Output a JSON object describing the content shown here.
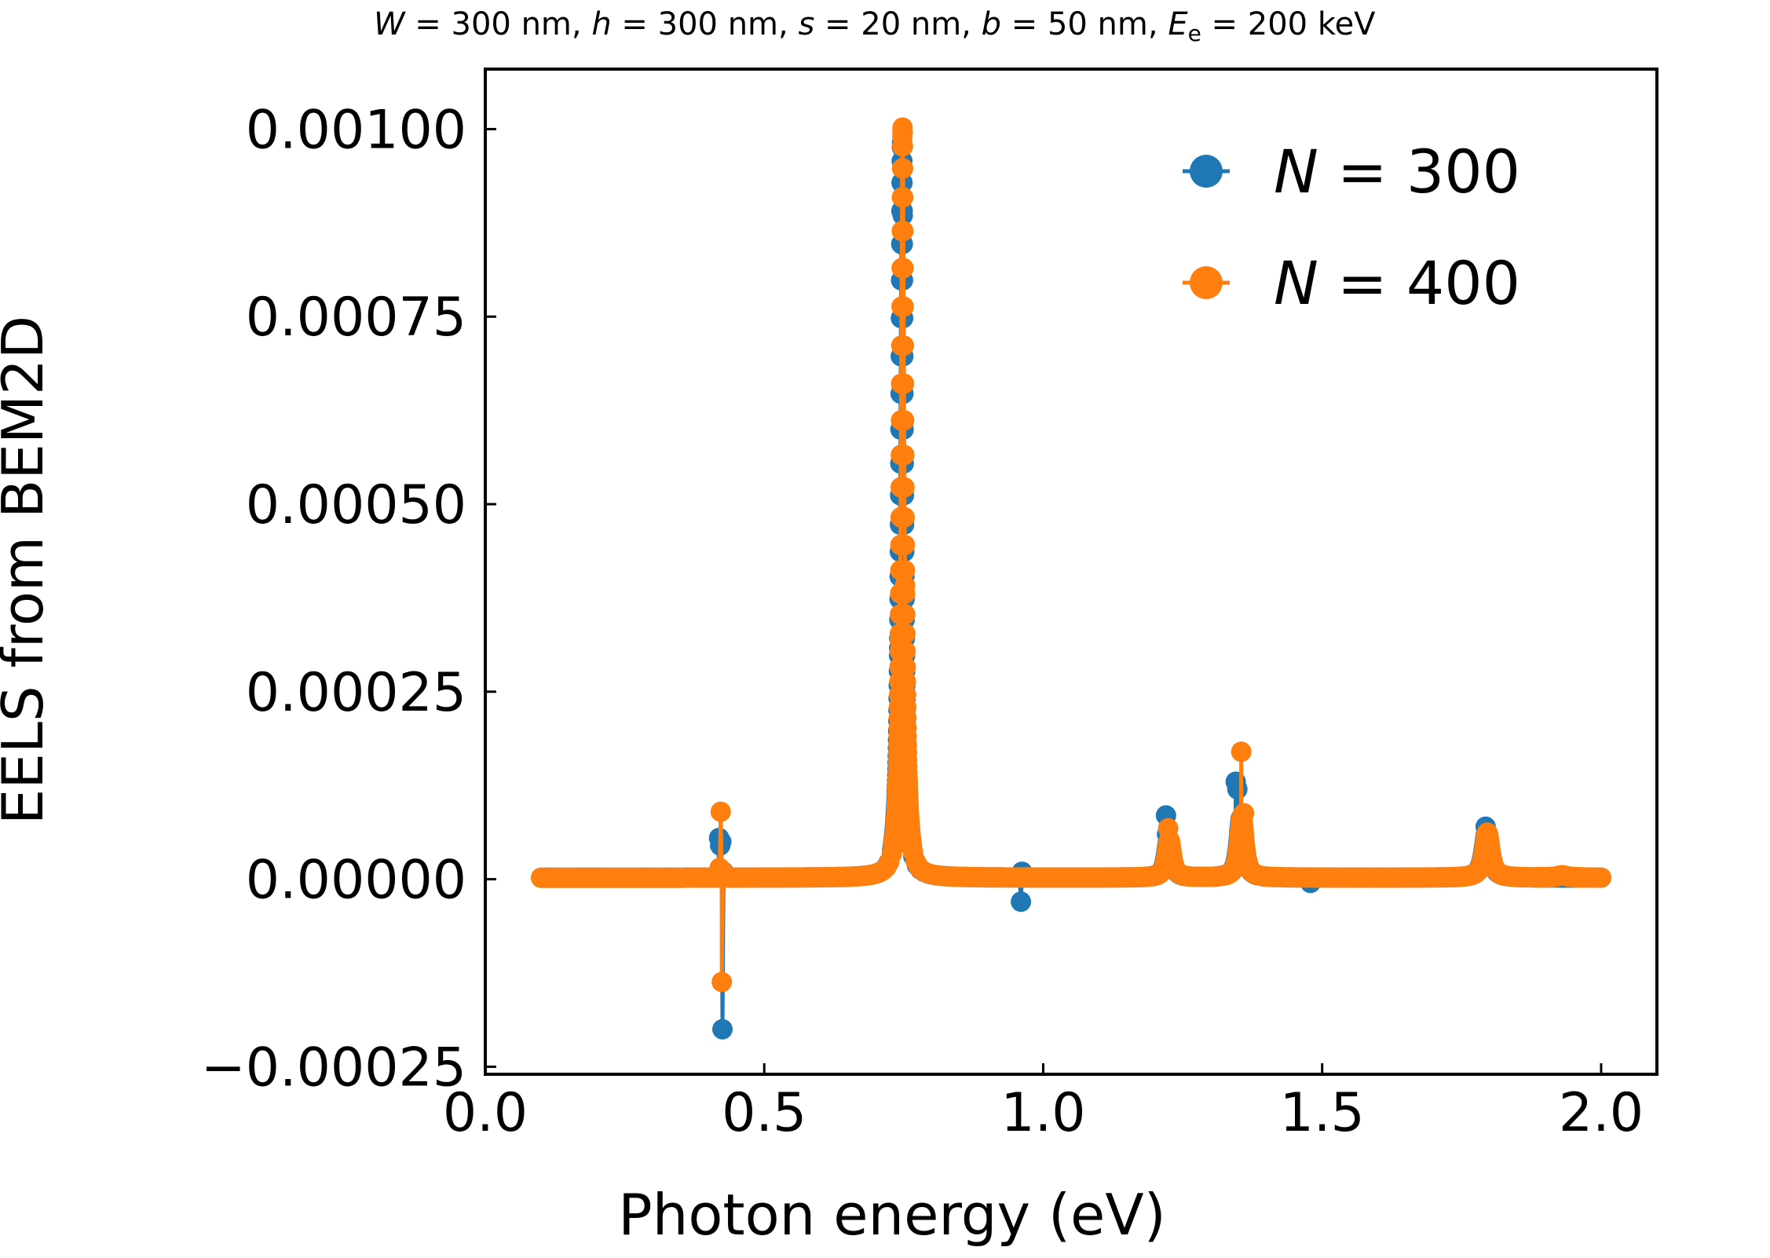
{
  "chart_data": {
    "type": "line",
    "title": {
      "parts": [
        {
          "text": "W",
          "italic": true
        },
        {
          "text": " = 300 nm, ",
          "italic": false
        },
        {
          "text": "h",
          "italic": true
        },
        {
          "text": " = 300 nm, ",
          "italic": false
        },
        {
          "text": "s",
          "italic": true
        },
        {
          "text": " = 20 nm, ",
          "italic": false
        },
        {
          "text": "b",
          "italic": true
        },
        {
          "text": " = 50 nm, ",
          "italic": false
        },
        {
          "text": "E",
          "italic": true
        },
        {
          "text": "e",
          "italic": false,
          "sub": true
        },
        {
          "text": " = 200 keV",
          "italic": false
        }
      ]
    },
    "xlabel": "Photon energy (eV)",
    "ylabel": "EELS from BEM2D",
    "xlim": [
      0.0,
      2.1
    ],
    "ylim": [
      -0.00026,
      0.00108
    ],
    "xticks": [
      {
        "value": 0.0,
        "label": "0.0"
      },
      {
        "value": 0.5,
        "label": "0.5"
      },
      {
        "value": 1.0,
        "label": "1.0"
      },
      {
        "value": 1.5,
        "label": "1.5"
      },
      {
        "value": 2.0,
        "label": "2.0"
      }
    ],
    "yticks": [
      {
        "value": -0.00025,
        "label": "−0.00025"
      },
      {
        "value": 0.0,
        "label": "0.00000"
      },
      {
        "value": 0.00025,
        "label": "0.00025"
      },
      {
        "value": 0.0005,
        "label": "0.00050"
      },
      {
        "value": 0.00075,
        "label": "0.00075"
      },
      {
        "value": 0.001,
        "label": "0.00100"
      }
    ],
    "grid": false,
    "legend_position": "top-right",
    "baseline": 2e-06,
    "x_range": [
      0.1,
      2.0
    ],
    "series": [
      {
        "legend_symbol": "N",
        "legend_value": "= 300",
        "color": "#1f77b4",
        "features": [
          {
            "x": 0.747,
            "y": 0.00098,
            "w": 0.0035
          },
          {
            "x": 1.225,
            "y": 5e-05,
            "w": 0.006
          },
          {
            "x": 1.355,
            "y": 8e-05,
            "w": 0.006
          },
          {
            "x": 1.795,
            "y": 6e-05,
            "w": 0.007
          }
        ],
        "spikes": [
          {
            "x": 0.419,
            "y": 5.5e-05
          },
          {
            "x": 0.421,
            "y": 4.5e-05
          },
          {
            "x": 0.423,
            "y": 5e-05
          },
          {
            "x": 0.425,
            "y": -0.0002
          },
          {
            "x": 0.427,
            "y": 1e-05
          },
          {
            "x": 0.96,
            "y": -3e-05
          },
          {
            "x": 0.962,
            "y": 1e-05
          },
          {
            "x": 1.22,
            "y": 8.5e-05
          },
          {
            "x": 1.222,
            "y": 6e-05
          },
          {
            "x": 1.345,
            "y": 0.00013
          },
          {
            "x": 1.348,
            "y": 0.00012
          },
          {
            "x": 1.352,
            "y": 6.5e-05
          },
          {
            "x": 1.355,
            "y": 4e-05
          },
          {
            "x": 1.479,
            "y": -5e-06
          },
          {
            "x": 1.793,
            "y": 7e-05
          },
          {
            "x": 1.797,
            "y": 6e-05
          }
        ]
      },
      {
        "legend_symbol": "N",
        "legend_value": "= 400",
        "color": "#ff7f0e",
        "features": [
          {
            "x": 0.748,
            "y": 0.001,
            "w": 0.0035
          },
          {
            "x": 1.226,
            "y": 5e-05,
            "w": 0.006
          },
          {
            "x": 1.356,
            "y": 8e-05,
            "w": 0.006
          },
          {
            "x": 1.796,
            "y": 6e-05,
            "w": 0.007
          },
          {
            "x": 1.93,
            "y": 3e-06,
            "w": 0.01
          }
        ],
        "spikes": [
          {
            "x": 0.42,
            "y": 1.5e-05
          },
          {
            "x": 0.422,
            "y": 9e-05
          },
          {
            "x": 0.424,
            "y": -0.000137
          },
          {
            "x": 0.426,
            "y": 1e-05
          },
          {
            "x": 1.224,
            "y": 6.8e-05
          },
          {
            "x": 1.355,
            "y": 0.00017
          },
          {
            "x": 1.357,
            "y": 8.5e-05
          },
          {
            "x": 1.36,
            "y": 8.8e-05
          }
        ]
      }
    ]
  }
}
